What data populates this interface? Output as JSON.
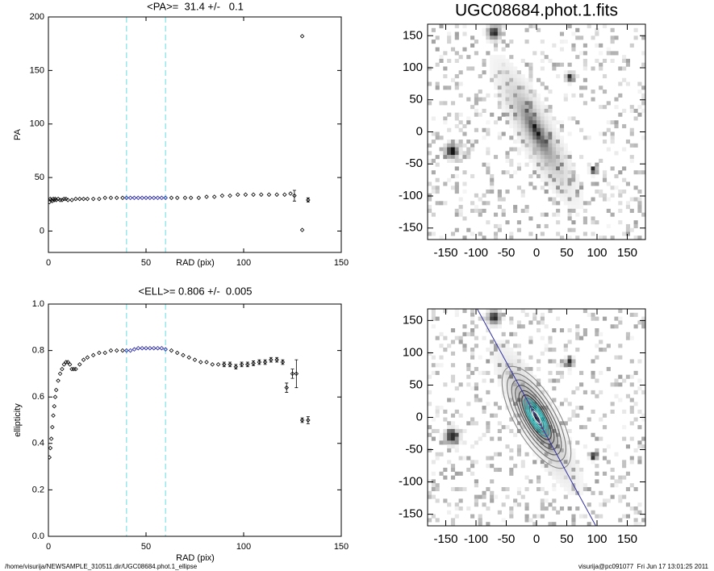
{
  "footer_left": "/home/visurija/NEWSAMPLE_310511.dir/UGC08684.phot.1_ellipse",
  "footer_right": "visurija@pc091077  Fri Jun 17 13:01:25 2011",
  "chart_data": [
    {
      "type": "scatter",
      "title": "<PA>=  31.4 +/-   0.1",
      "x_label": "RAD (pix)",
      "y_label": "PA",
      "xlim": [
        0,
        150
      ],
      "xticks": [
        0,
        50,
        100,
        150
      ],
      "ylim": [
        -20,
        200
      ],
      "yticks": [
        0,
        50,
        100,
        150,
        200
      ],
      "vlines": [
        40,
        60
      ],
      "vline_color": "#7fe3e8",
      "series": [
        {
          "color": "#000000",
          "x": [
            0.5,
            1,
            1.5,
            2,
            2.5,
            3,
            3.5,
            4,
            5,
            6,
            7,
            8,
            9,
            10,
            12,
            14,
            16,
            18,
            20,
            23,
            26,
            29,
            32,
            35,
            38
          ],
          "values": [
            27,
            30,
            29,
            28,
            30,
            29,
            30,
            29,
            30,
            29,
            29,
            30,
            30,
            29,
            29,
            30,
            30,
            30,
            30,
            30,
            30,
            31,
            31,
            31,
            31
          ]
        },
        {
          "color": "#1a1aa6",
          "x": [
            40,
            42,
            44,
            46,
            48,
            50,
            52,
            54,
            56,
            58,
            60
          ],
          "values": [
            31,
            31,
            31,
            31,
            31,
            31,
            31,
            31,
            31,
            31,
            31
          ]
        },
        {
          "color": "#000000",
          "x": [
            63,
            66,
            70,
            73,
            77,
            81,
            85,
            89,
            93,
            97,
            101,
            105,
            109,
            113,
            117,
            121,
            124,
            126,
            130,
            130,
            133
          ],
          "values": [
            31,
            31,
            31,
            31,
            31,
            32,
            32,
            33,
            33,
            34,
            34,
            34,
            34,
            34,
            34,
            34,
            35,
            33,
            182,
            1,
            29
          ],
          "errors": [
            null,
            null,
            null,
            null,
            null,
            null,
            null,
            null,
            null,
            null,
            null,
            null,
            null,
            null,
            null,
            null,
            null,
            5,
            null,
            null,
            2
          ]
        }
      ]
    },
    {
      "type": "image",
      "title": "UGC08684.phot.1.fits",
      "xlim": [
        -180,
        180
      ],
      "xticks": [
        -150,
        -100,
        -50,
        0,
        50,
        100,
        150
      ],
      "ylim": [
        -168,
        168
      ],
      "yticks": [
        -150,
        -100,
        -50,
        0,
        50,
        100,
        150
      ]
    },
    {
      "type": "scatter",
      "title": "<ELL>= 0.806 +/-  0.005",
      "x_label": "RAD (pix)",
      "y_label": "ellipticity",
      "xlim": [
        0,
        150
      ],
      "xticks": [
        0,
        50,
        100,
        150
      ],
      "ylim": [
        0,
        1
      ],
      "yticks": [
        {
          "value": 0,
          "label": "0.0"
        },
        0.2,
        0.4,
        0.6,
        0.8,
        {
          "value": 1,
          "label": "1.0"
        }
      ],
      "vlines": [
        40,
        60
      ],
      "vline_color": "#7fe3e8",
      "series": [
        {
          "color": "#000000",
          "x": [
            0.5,
            1,
            1.5,
            2,
            2.5,
            3,
            3.5,
            4,
            5,
            6,
            7,
            8,
            9,
            10,
            11,
            12,
            13,
            14,
            16,
            18,
            20,
            23,
            26,
            29,
            32,
            35,
            38
          ],
          "values": [
            0.34,
            0.38,
            0.42,
            0.47,
            0.52,
            0.56,
            0.6,
            0.63,
            0.67,
            0.7,
            0.72,
            0.74,
            0.75,
            0.75,
            0.74,
            0.72,
            0.72,
            0.72,
            0.74,
            0.76,
            0.77,
            0.78,
            0.79,
            0.79,
            0.8,
            0.8,
            0.8
          ]
        },
        {
          "color": "#1a1aa6",
          "x": [
            40,
            42,
            44,
            46,
            48,
            50,
            52,
            54,
            56,
            58,
            60
          ],
          "values": [
            0.8,
            0.8,
            0.805,
            0.81,
            0.81,
            0.81,
            0.81,
            0.81,
            0.81,
            0.81,
            0.805
          ]
        },
        {
          "color": "#000000",
          "x": [
            63,
            66,
            69,
            72,
            75,
            78,
            81,
            84,
            87,
            90,
            93,
            96,
            99,
            102,
            105,
            108,
            111,
            114,
            117,
            120,
            122,
            125,
            127,
            130,
            133
          ],
          "values": [
            0.8,
            0.79,
            0.78,
            0.77,
            0.76,
            0.75,
            0.75,
            0.74,
            0.74,
            0.74,
            0.74,
            0.73,
            0.74,
            0.74,
            0.745,
            0.75,
            0.75,
            0.76,
            0.76,
            0.75,
            0.64,
            0.7,
            0.7,
            0.5,
            0.5
          ],
          "errors": [
            null,
            null,
            null,
            null,
            null,
            null,
            null,
            null,
            null,
            0.01,
            0.01,
            0.01,
            0.01,
            0.01,
            0.01,
            0.01,
            0.01,
            0.01,
            0.01,
            0.01,
            0.02,
            0.02,
            0.06,
            0.01,
            0.015
          ]
        }
      ]
    },
    {
      "type": "image",
      "overlay": "contours",
      "xlim": [
        -180,
        180
      ],
      "xticks": [
        -150,
        -100,
        -50,
        0,
        50,
        100,
        150
      ],
      "ylim": [
        -168,
        168
      ],
      "yticks": [
        -150,
        -100,
        -50,
        0,
        50,
        100,
        150
      ]
    }
  ]
}
